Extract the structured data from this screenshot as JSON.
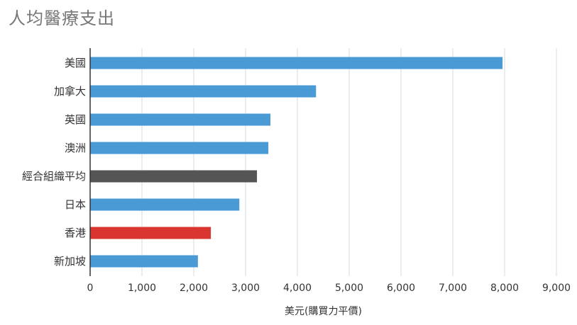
{
  "chart_data": {
    "type": "bar",
    "orientation": "horizontal",
    "title": "人均醫療支出",
    "xlabel": "美元(購買力平價)",
    "ylabel": "",
    "xlim": [
      0,
      9000
    ],
    "x_ticks": [
      0,
      1000,
      2000,
      3000,
      4000,
      5000,
      6000,
      7000,
      8000,
      9000
    ],
    "x_tick_labels": [
      "0",
      "1,000",
      "2,000",
      "3,000",
      "4,000",
      "5,000",
      "6,000",
      "7,000",
      "8,000",
      "9,000"
    ],
    "grid": true,
    "categories": [
      "美國",
      "加拿大",
      "英國",
      "澳洲",
      "經合組織平均",
      "日本",
      "香港",
      "新加坡"
    ],
    "values": [
      7960,
      4360,
      3480,
      3440,
      3220,
      2880,
      2330,
      2080
    ],
    "bar_colors": [
      "#4a9ad6",
      "#4a9ad6",
      "#4a9ad6",
      "#4a9ad6",
      "#555555",
      "#4a9ad6",
      "#d93631",
      "#4a9ad6"
    ],
    "grid_color": "#d9d9d9",
    "axis_color": "#333333"
  }
}
